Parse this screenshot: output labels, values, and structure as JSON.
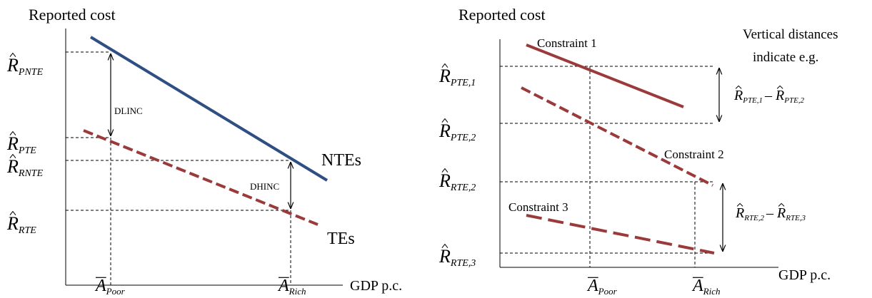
{
  "left_panel": {
    "y_axis_title": "Reported cost",
    "x_axis_title": "GDP p.c.",
    "y_labels": [
      {
        "symbol": "R",
        "sub": "PNTE"
      },
      {
        "symbol": "R",
        "sub": "PTE"
      },
      {
        "symbol": "R",
        "sub": "RNTE"
      },
      {
        "symbol": "R",
        "sub": "RTE"
      }
    ],
    "x_labels": [
      {
        "symbol": "A",
        "sub": "Poor"
      },
      {
        "symbol": "A",
        "sub": "Rich"
      }
    ],
    "gap_labels": [
      "DLINC",
      "DHINC"
    ],
    "line_labels": [
      "NTEs",
      "TEs"
    ]
  },
  "right_panel": {
    "y_axis_title": "Reported cost",
    "x_axis_title": "GDP p.c.",
    "y_labels": [
      {
        "symbol": "R",
        "sub": "PTE,1"
      },
      {
        "symbol": "R",
        "sub": "PTE,2"
      },
      {
        "symbol": "R",
        "sub": "RTE,2"
      },
      {
        "symbol": "R",
        "sub": "RTE,3"
      }
    ],
    "x_labels": [
      {
        "symbol": "A",
        "sub": "Poor"
      },
      {
        "symbol": "A",
        "sub": "Rich"
      }
    ],
    "constraint_labels": [
      "Constraint 1",
      "Constraint 2",
      "Constraint 3"
    ],
    "note": [
      "Vertical distances",
      "indicate e.g."
    ],
    "differences": [
      {
        "left": {
          "symbol": "R",
          "sub": "PTE,1"
        },
        "operator": "–",
        "right": {
          "symbol": "R",
          "sub": "PTE,2"
        }
      },
      {
        "left": {
          "symbol": "R",
          "sub": "RTE,2"
        },
        "operator": "–",
        "right": {
          "symbol": "R",
          "sub": "RTE,3"
        }
      }
    ]
  }
}
